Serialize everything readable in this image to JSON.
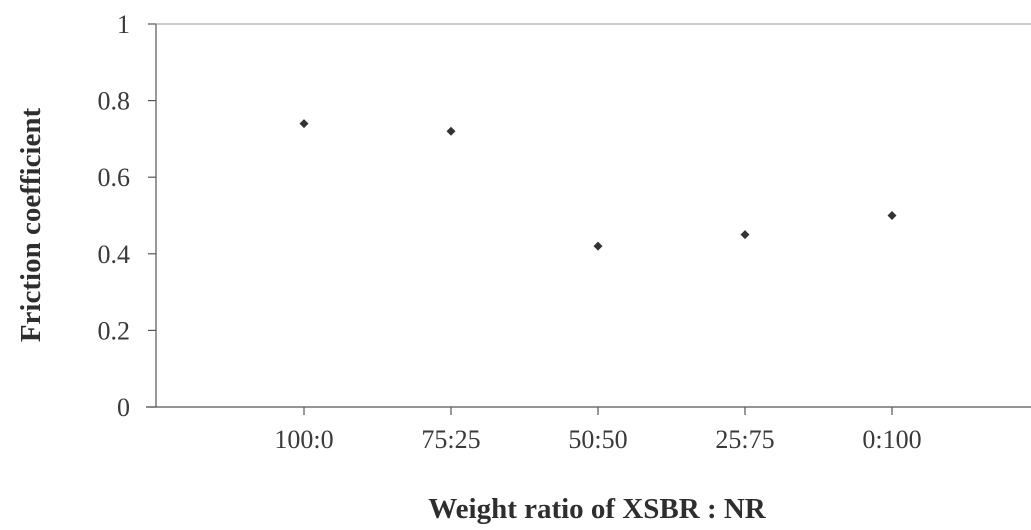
{
  "chart_data": {
    "type": "scatter",
    "title": "",
    "xlabel": "Weight ratio of XSBR : NR",
    "ylabel": "Friction coefficient",
    "categories": [
      "100:0",
      "75:25",
      "50:50",
      "25:75",
      "0:100"
    ],
    "values": [
      0.74,
      0.72,
      0.42,
      0.45,
      0.5
    ],
    "ylim": [
      0,
      1
    ],
    "yticks": [
      "0",
      "0.2",
      "0.4",
      "0.6",
      "0.8",
      "1"
    ],
    "grid": false,
    "legend": "none",
    "marker": "diamond",
    "marker_color": "#333333",
    "axis_color": "#555555"
  }
}
